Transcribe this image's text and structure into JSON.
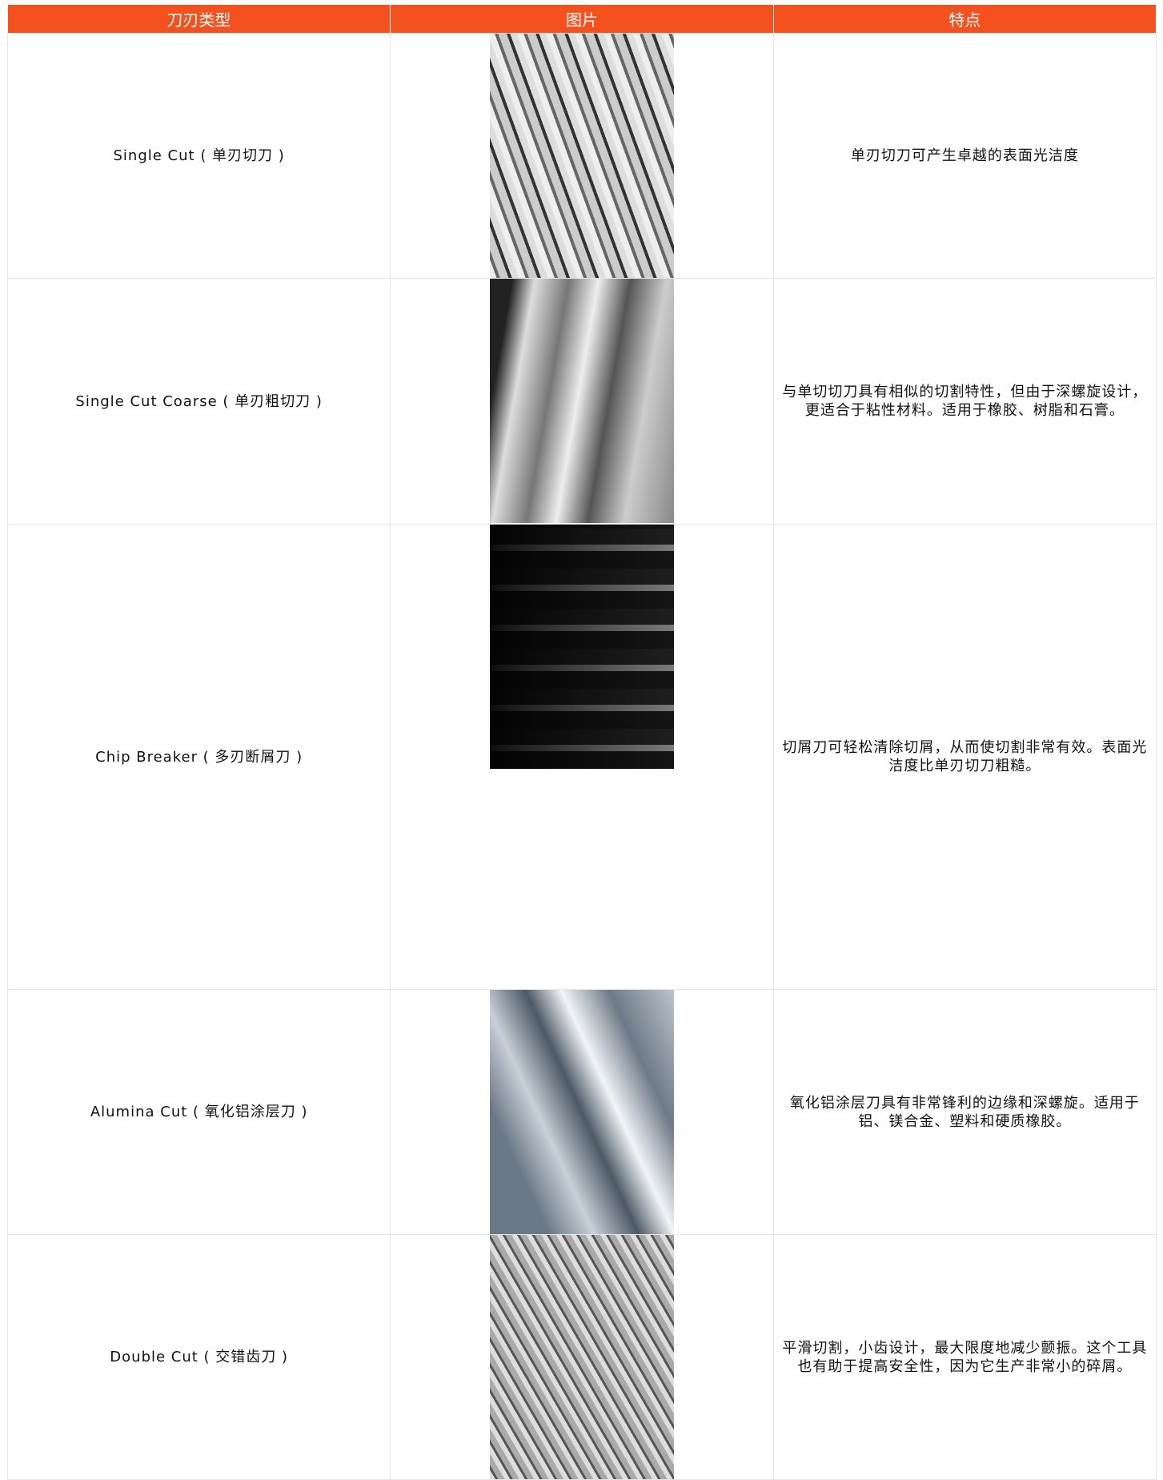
{
  "table": {
    "header": [
      "刀刃类型",
      "图片",
      "特点"
    ],
    "rows": [
      {
        "type": "Single Cut ( 单刃切刀 )",
        "feature": "单刃切刀可产生卓越的表面光洁度"
      },
      {
        "type": "Single Cut Coarse ( 单刃粗切刀 )",
        "feature": "与单切切刀具有相似的切割特性，但由于深螺旋设计，更适合于粘性材料。适用于橡胶、树脂和石膏。"
      },
      {
        "type": "Chip Breaker ( 多刃断屑刀 )",
        "feature": "切屑刀可轻松清除切屑，从而使切割非常有效。表面光洁度比单刃切刀粗糙。"
      },
      {
        "type": "Alumina Cut ( 氧化铝涂层刀 )",
        "feature": "氧化铝涂层刀具有非常锋利的边缘和深螺旋。适用于铝、镁合金、塑料和硬质橡胶。"
      },
      {
        "type": "Double Cut ( 交错齿刀 )",
        "feature": "平滑切割，小齿设计，最大限度地减少颤振。这个工具也有助于提高安全性，因为它生产非常小的碎屑。"
      }
    ]
  }
}
